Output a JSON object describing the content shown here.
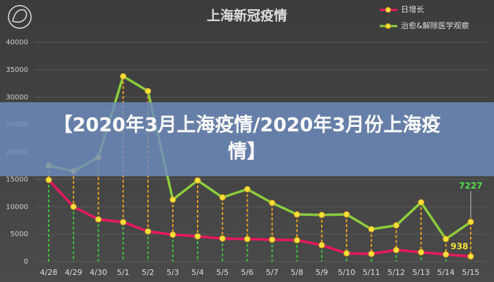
{
  "chart_data": {
    "type": "line",
    "title": "上海新冠疫情",
    "categories": [
      "4/28",
      "4/29",
      "4/30",
      "5/1",
      "5/2",
      "5/3",
      "5/4",
      "5/5",
      "5/6",
      "5/7",
      "5/8",
      "5/9",
      "5/10",
      "5/11",
      "5/12",
      "5/13",
      "5/14",
      "5/15"
    ],
    "series": [
      {
        "name": "日增长",
        "color": "#e8185e",
        "values": [
          14900,
          10000,
          7700,
          7200,
          5500,
          4900,
          4600,
          4200,
          4100,
          4000,
          3900,
          3000,
          1500,
          1400,
          2100,
          1700,
          1300,
          938
        ]
      },
      {
        "name": "治愈&解除医学观察",
        "color": "#8ccc3c",
        "values": [
          17500,
          16500,
          19000,
          33800,
          31100,
          11300,
          14800,
          11700,
          13200,
          10700,
          8600,
          8500,
          8600,
          5900,
          6600,
          10800,
          4100,
          7227
        ]
      }
    ],
    "ylim": [
      0,
      40000
    ],
    "yticks": [
      0,
      5000,
      10000,
      15000,
      20000,
      25000,
      30000,
      35000,
      40000
    ],
    "grid": true
  },
  "banner": "【2020年3月上海疫情/2020年3月份上海疫情】"
}
